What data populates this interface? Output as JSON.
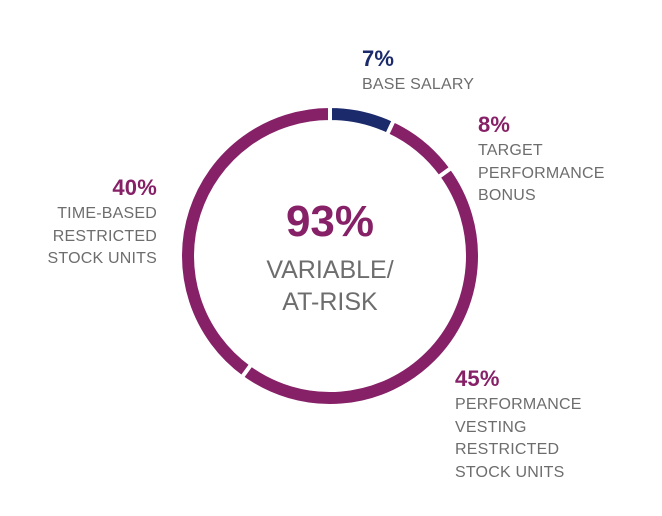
{
  "chart_data": {
    "type": "donut",
    "categories": [
      "BASE SALARY",
      "TARGET PERFORMANCE BONUS",
      "PERFORMANCE VESTING RESTRICTED STOCK UNITS",
      "TIME-BASED RESTRICTED STOCK UNITS"
    ],
    "values": [
      7,
      8,
      45,
      40
    ],
    "value_labels": [
      "7%",
      "8%",
      "45%",
      "40%"
    ],
    "colors": [
      "#1b2a6b",
      "#862067",
      "#862067",
      "#862067"
    ],
    "center_label": "93%",
    "center_text": "VARIABLE/ AT-RISK"
  }
}
